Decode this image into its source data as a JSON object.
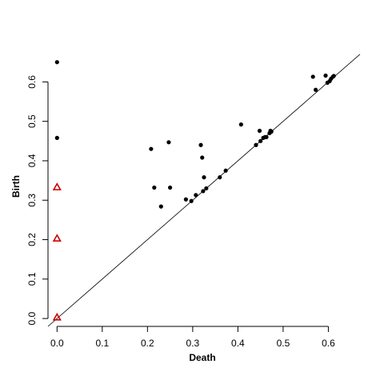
{
  "chart_data": {
    "type": "scatter",
    "title": "",
    "xlabel": "Death",
    "ylabel": "Birth",
    "xlim": [
      -0.02,
      0.67
    ],
    "ylim": [
      -0.02,
      0.69
    ],
    "xticks": [
      0.0,
      0.1,
      0.2,
      0.3,
      0.4,
      0.5,
      0.6
    ],
    "yticks": [
      0.0,
      0.1,
      0.2,
      0.3,
      0.4,
      0.5,
      0.6
    ],
    "diagonal": true,
    "grid": false,
    "legend": "none",
    "series": [
      {
        "marker": "filled-circle",
        "color": "#000000",
        "points": [
          [
            0.0,
            0.65
          ],
          [
            0.0,
            0.458
          ],
          [
            0.208,
            0.43
          ],
          [
            0.215,
            0.332
          ],
          [
            0.23,
            0.284
          ],
          [
            0.247,
            0.447
          ],
          [
            0.25,
            0.332
          ],
          [
            0.285,
            0.302
          ],
          [
            0.297,
            0.298
          ],
          [
            0.307,
            0.313
          ],
          [
            0.318,
            0.44
          ],
          [
            0.321,
            0.408
          ],
          [
            0.323,
            0.323
          ],
          [
            0.325,
            0.358
          ],
          [
            0.33,
            0.33
          ],
          [
            0.36,
            0.358
          ],
          [
            0.373,
            0.375
          ],
          [
            0.407,
            0.492
          ],
          [
            0.44,
            0.44
          ],
          [
            0.448,
            0.476
          ],
          [
            0.45,
            0.45
          ],
          [
            0.456,
            0.458
          ],
          [
            0.46,
            0.46
          ],
          [
            0.463,
            0.46
          ],
          [
            0.47,
            0.47
          ],
          [
            0.472,
            0.476
          ],
          [
            0.474,
            0.474
          ],
          [
            0.566,
            0.613
          ],
          [
            0.572,
            0.58
          ],
          [
            0.594,
            0.616
          ],
          [
            0.598,
            0.598
          ],
          [
            0.603,
            0.602
          ],
          [
            0.606,
            0.608
          ],
          [
            0.61,
            0.613
          ],
          [
            0.612,
            0.615
          ]
        ]
      },
      {
        "marker": "open-triangle",
        "color": "#cc0000",
        "points": [
          [
            0.0,
            0.333
          ],
          [
            0.0,
            0.203
          ],
          [
            0.0,
            0.003
          ]
        ]
      }
    ]
  }
}
